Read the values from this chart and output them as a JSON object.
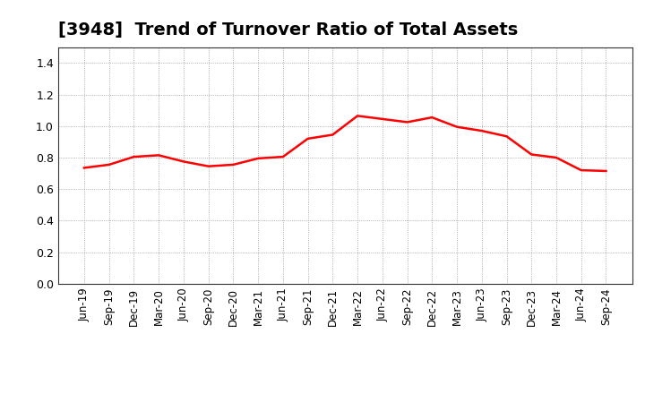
{
  "title": "[3948]  Trend of Turnover Ratio of Total Assets",
  "title_fontsize": 14,
  "line_color": "#ff0000",
  "line_width": 1.8,
  "background_color": "#ffffff",
  "plot_bg_color": "#ffffff",
  "grid_color": "#999999",
  "ylim": [
    0.0,
    1.5
  ],
  "yticks": [
    0.0,
    0.2,
    0.4,
    0.6,
    0.8,
    1.0,
    1.2,
    1.4
  ],
  "labels": [
    "Jun-19",
    "Sep-19",
    "Dec-19",
    "Mar-20",
    "Jun-20",
    "Sep-20",
    "Dec-20",
    "Mar-21",
    "Jun-21",
    "Sep-21",
    "Dec-21",
    "Mar-22",
    "Jun-22",
    "Sep-22",
    "Dec-22",
    "Mar-23",
    "Jun-23",
    "Sep-23",
    "Dec-23",
    "Mar-24",
    "Jun-24",
    "Sep-24"
  ],
  "values": [
    0.735,
    0.755,
    0.805,
    0.815,
    0.775,
    0.745,
    0.755,
    0.795,
    0.805,
    0.92,
    0.945,
    1.065,
    1.045,
    1.025,
    1.055,
    0.995,
    0.97,
    0.935,
    0.82,
    0.8,
    0.72,
    0.715
  ]
}
